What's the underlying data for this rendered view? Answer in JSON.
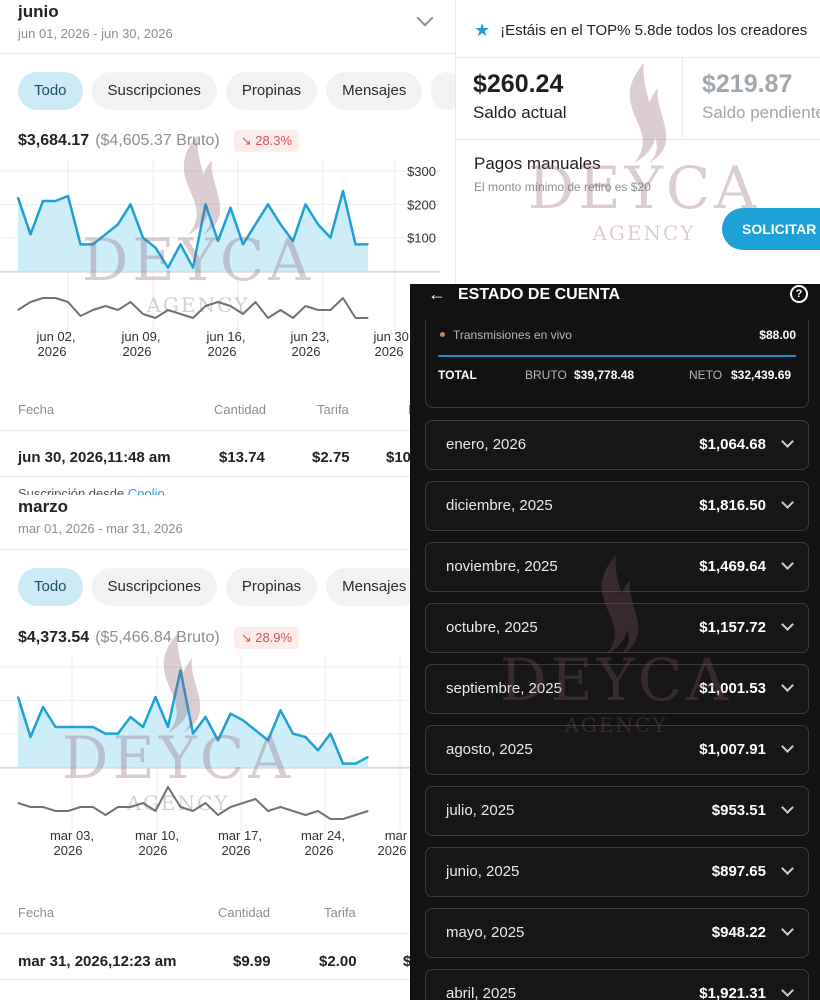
{
  "junio": {
    "title": "junio",
    "range": "jun 01, 2026 - jun 30, 2026",
    "chips": [
      "Todo",
      "Suscripciones",
      "Propinas",
      "Mensajes"
    ],
    "active_chip": "Todo",
    "net": "$3,684.17",
    "gross": "($4,605.37 Bruto)",
    "change": "↘ 28.3%",
    "table_headers": [
      "Fecha",
      "Cantidad",
      "Tarifa",
      "N"
    ],
    "row": [
      "jun 30, 2026,11:48 am",
      "$13.74",
      "$2.75",
      "$10"
    ],
    "cut_text": "Suscripción desde",
    "cut_link": "Coolio"
  },
  "marzo": {
    "title": "marzo",
    "range": "mar 01, 2026 - mar 31, 2026",
    "chips": [
      "Todo",
      "Suscripciones",
      "Propinas",
      "Mensajes"
    ],
    "active_chip": "Todo",
    "net": "$4,373.54",
    "gross": "($5,466.84 Bruto)",
    "change": "↘ 28.9%",
    "table_headers": [
      "Fecha",
      "Cantidad",
      "Tarifa",
      "N"
    ],
    "row": [
      "mar 31, 2026,12:23 am",
      "$9.99",
      "$2.00",
      "$"
    ]
  },
  "chart_data": [
    {
      "type": "line",
      "title": "",
      "y_tick_labels": [
        "$300",
        "$200",
        "$100"
      ],
      "ylim": [
        0,
        300
      ],
      "x_tick_labels": [
        [
          "jun 02,",
          "2026"
        ],
        [
          "jun 09,",
          "2026"
        ],
        [
          "jun 16,",
          "2026"
        ],
        [
          "jun 23,",
          "2026"
        ],
        [
          "jun 30,",
          "2026"
        ]
      ],
      "series": [
        {
          "values": [
            220,
            110,
            210,
            210,
            225,
            80,
            80,
            110,
            140,
            200,
            100,
            70,
            10,
            80,
            10,
            200,
            90,
            190,
            80,
            140,
            200,
            140,
            90,
            200,
            140,
            100,
            240,
            80,
            80
          ]
        },
        {
          "values": [
            40,
            60,
            70,
            70,
            60,
            25,
            40,
            50,
            40,
            60,
            30,
            20,
            40,
            30,
            20,
            50,
            60,
            50,
            30,
            60,
            20,
            40,
            20,
            50,
            40,
            40,
            70,
            20,
            20
          ]
        }
      ]
    },
    {
      "type": "line",
      "title": "",
      "x_tick_labels": [
        [
          "mar 03,",
          "2026"
        ],
        [
          "mar 10,",
          "2026"
        ],
        [
          "mar 17,",
          "2026"
        ],
        [
          "mar 24,",
          "2026"
        ],
        [
          "mar",
          "2026"
        ]
      ],
      "series": [
        {
          "values": [
            210,
            90,
            180,
            120,
            120,
            120,
            120,
            100,
            100,
            150,
            120,
            210,
            120,
            290,
            100,
            150,
            80,
            160,
            140,
            110,
            80,
            170,
            100,
            90,
            50,
            100,
            10,
            10,
            30
          ]
        },
        {
          "values": [
            50,
            40,
            40,
            30,
            30,
            40,
            40,
            20,
            40,
            40,
            50,
            30,
            90,
            40,
            30,
            50,
            20,
            40,
            50,
            60,
            30,
            40,
            30,
            20,
            30,
            10,
            10,
            20,
            30
          ]
        }
      ]
    }
  ],
  "payout": {
    "banner": "¡Estáis en el TOP% 5.8de todos los creadores",
    "balance_current": "$260.24",
    "balance_current_label": "Saldo actual",
    "balance_pending": "$219.87",
    "balance_pending_label": "Saldo pendiente",
    "manual_title": "Pagos manuales",
    "manual_note": "El monto mínimo de retiro es $20",
    "request_button": "SOLICITAR"
  },
  "account": {
    "title": "ESTADO DE CUENTA",
    "live_label": "Transmisiones en vivo",
    "live_value": "$88.00",
    "total_label": "TOTAL",
    "gross_label": "BRUTO",
    "gross_value": "$39,778.48",
    "net_label": "NETO",
    "net_value": "$32,439.69",
    "months": [
      {
        "name": "enero, 2026",
        "amount": "$1,064.68"
      },
      {
        "name": "diciembre, 2025",
        "amount": "$1,816.50"
      },
      {
        "name": "noviembre, 2025",
        "amount": "$1,469.64"
      },
      {
        "name": "octubre, 2025",
        "amount": "$1,157.72"
      },
      {
        "name": "septiembre, 2025",
        "amount": "$1,001.53"
      },
      {
        "name": "agosto, 2025",
        "amount": "$1,007.91"
      },
      {
        "name": "julio, 2025",
        "amount": "$953.51"
      },
      {
        "name": "junio, 2025",
        "amount": "$897.65"
      },
      {
        "name": "mayo, 2025",
        "amount": "$948.22"
      },
      {
        "name": "abril, 2025",
        "amount": "$1,921.31"
      }
    ]
  },
  "watermark": {
    "brand": "DEYCA",
    "sub": "AGENCY"
  },
  "colors": {
    "accent": "#1da1d6",
    "chip_active": "#cdeaf7",
    "area_fill": "#cdeef9",
    "down": "#e05050",
    "dark_bg": "#121212"
  }
}
